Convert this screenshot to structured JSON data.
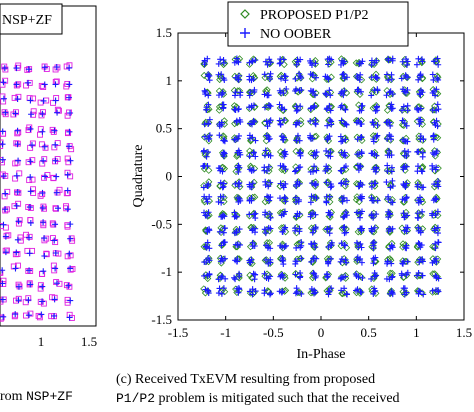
{
  "left_panel": {
    "legend_text": "NSP+ZF",
    "x_ticks": [
      "1",
      "1.5"
    ],
    "caption_fragment": "rom",
    "caption_mono": "NSP+ZF"
  },
  "chart_data": {
    "type": "scatter",
    "title": "",
    "xlabel": "In-Phase",
    "ylabel": "Quadrature",
    "xlim": [
      -1.5,
      1.5
    ],
    "ylim": [
      -1.5,
      1.5
    ],
    "x_ticks": [
      -1.5,
      -1,
      -0.5,
      0,
      0.5,
      1,
      1.5
    ],
    "y_ticks": [
      -1.5,
      -1,
      -0.5,
      0,
      0.5,
      1,
      1.5
    ],
    "x_tick_labels": [
      "-1.5",
      "-1",
      "-0.5",
      "0",
      "0.5",
      "1",
      "1.5"
    ],
    "y_tick_labels": [
      "-1.5",
      "-1",
      "-0.5",
      "0",
      "0.5",
      "1",
      "1.5"
    ],
    "grid": false,
    "legend_position": "top",
    "constellation_levels": [
      -1.2,
      -1.04,
      -0.88,
      -0.72,
      -0.56,
      -0.4,
      -0.24,
      -0.08,
      0.08,
      0.24,
      0.4,
      0.56,
      0.72,
      0.88,
      1.04,
      1.2
    ],
    "series": [
      {
        "name": "PROPOSED P1/P2",
        "marker": "diamond",
        "color": "#2e8b22"
      },
      {
        "name": "NO OOBER",
        "marker": "plus",
        "color": "#1a1aff"
      }
    ]
  },
  "caption": {
    "label": "(c)",
    "line1": "Received TxEVM resulting from proposed",
    "line2_mono": "P1/P2",
    "line2_text": " problem is mitigated such that the received"
  },
  "colors": {
    "left_marker": "#e020e0",
    "left_plus": "#1a1aff"
  }
}
